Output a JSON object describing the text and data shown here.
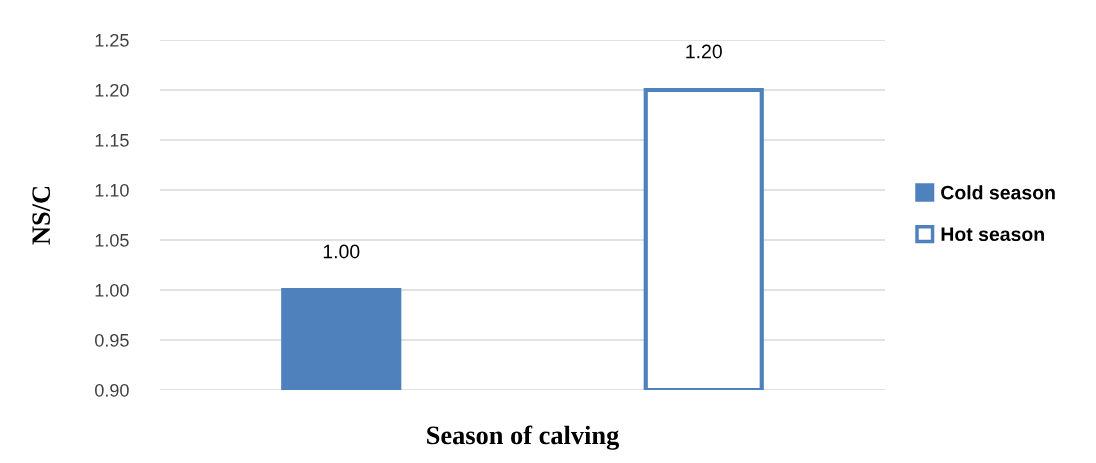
{
  "chart_data": {
    "type": "bar",
    "xlabel": "Season of calving",
    "ylabel": "NS/C",
    "categories": [
      null,
      null
    ],
    "series": [
      {
        "name": "Cold season",
        "color": "#4f81bd",
        "values": [
          1.0,
          null
        ],
        "value_labels": [
          "1.00",
          null
        ]
      },
      {
        "name": "Hot season",
        "color": "#ffffff",
        "values": [
          null,
          1.2
        ],
        "value_labels": [
          null,
          "1.20"
        ]
      }
    ],
    "ylim": [
      0.9,
      1.25
    ],
    "yticks": [
      {
        "value": 0.9,
        "label": "0.90"
      },
      {
        "value": 0.95,
        "label": "0.95"
      },
      {
        "value": 1.0,
        "label": "1.00"
      },
      {
        "value": 1.05,
        "label": "1.05"
      },
      {
        "value": 1.1,
        "label": "1.10"
      },
      {
        "value": 1.15,
        "label": "1.15"
      },
      {
        "value": 1.2,
        "label": "1.20"
      },
      {
        "value": 1.25,
        "label": "1.25"
      }
    ],
    "grid": "y",
    "legend": "right"
  }
}
